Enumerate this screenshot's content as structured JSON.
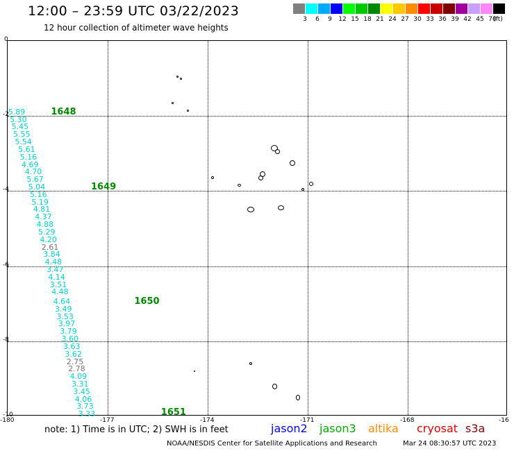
{
  "title": "12:00 – 23:59 UTC 03/22/2023",
  "subtitle": "12 hour collection of altimeter wave heights",
  "legend": {
    "colors": [
      "#808080",
      "#00ffff",
      "#00aaff",
      "#0000ff",
      "#00ff00",
      "#00c800",
      "#008800",
      "#ffff00",
      "#ffc800",
      "#ff8c00",
      "#ff0000",
      "#c80000",
      "#800000",
      "#a000a0",
      "#c8a0ff",
      "#ff88ff",
      "#000000"
    ],
    "labels": [
      "3",
      "6",
      "9",
      "12",
      "15",
      "18",
      "21",
      "24",
      "27",
      "30",
      "33",
      "36",
      "39",
      "42",
      "45",
      "70"
    ],
    "unit": "(ft)"
  },
  "axes": {
    "x_ticks": [
      "-180",
      "-177",
      "-174",
      "-171",
      "-168",
      "-16"
    ],
    "y_ticks": [
      "0",
      "-2",
      "-4",
      "-6",
      "-8",
      "-10"
    ],
    "x_range": [
      -180,
      -165
    ],
    "y_range": [
      -10,
      0
    ]
  },
  "passes": [
    {
      "label": "1648",
      "lon": -178.7,
      "lat": -1.9
    },
    {
      "label": "1649",
      "lon": -177.5,
      "lat": -3.9
    },
    {
      "label": "1650",
      "lon": -176.2,
      "lat": -6.95
    },
    {
      "label": "1651",
      "lon": -175.4,
      "lat": -9.9
    }
  ],
  "wave_heights": [
    {
      "v": "5.89",
      "lon": -179.9,
      "lat": -1.9
    },
    {
      "v": "5.30",
      "lon": -179.85,
      "lat": -2.1
    },
    {
      "v": "5.45",
      "lon": -179.8,
      "lat": -2.3
    },
    {
      "v": "5.55",
      "lon": -179.75,
      "lat": -2.5
    },
    {
      "v": "5.54",
      "lon": -179.7,
      "lat": -2.7
    },
    {
      "v": "5.61",
      "lon": -179.6,
      "lat": -2.9
    },
    {
      "v": "5.16",
      "lon": -179.55,
      "lat": -3.1
    },
    {
      "v": "4.69",
      "lon": -179.5,
      "lat": -3.3
    },
    {
      "v": "4.70",
      "lon": -179.4,
      "lat": -3.5
    },
    {
      "v": "5.67",
      "lon": -179.35,
      "lat": -3.7
    },
    {
      "v": "5.04",
      "lon": -179.3,
      "lat": -3.9
    },
    {
      "v": "5.16",
      "lon": -179.25,
      "lat": -4.1
    },
    {
      "v": "5.19",
      "lon": -179.2,
      "lat": -4.3
    },
    {
      "v": "4.81",
      "lon": -179.15,
      "lat": -4.5
    },
    {
      "v": "4.37",
      "lon": -179.1,
      "lat": -4.7
    },
    {
      "v": "4.88",
      "lon": -179.05,
      "lat": -4.9
    },
    {
      "v": "5.29",
      "lon": -179.0,
      "lat": -5.1
    },
    {
      "v": "4.20",
      "lon": -178.95,
      "lat": -5.3
    },
    {
      "v": "2.61",
      "lon": -178.9,
      "lat": -5.5,
      "gray": true
    },
    {
      "v": "3.84",
      "lon": -178.85,
      "lat": -5.7
    },
    {
      "v": "4.48",
      "lon": -178.8,
      "lat": -5.9
    },
    {
      "v": "3.47",
      "lon": -178.75,
      "lat": -6.1
    },
    {
      "v": "4.14",
      "lon": -178.7,
      "lat": -6.3
    },
    {
      "v": "3.51",
      "lon": -178.65,
      "lat": -6.5
    },
    {
      "v": "4.48",
      "lon": -178.6,
      "lat": -6.7
    },
    {
      "v": "4.64",
      "lon": -178.55,
      "lat": -6.95
    },
    {
      "v": "3.49",
      "lon": -178.5,
      "lat": -7.15
    },
    {
      "v": "3.53",
      "lon": -178.45,
      "lat": -7.35
    },
    {
      "v": "3.97",
      "lon": -178.4,
      "lat": -7.55
    },
    {
      "v": "3.79",
      "lon": -178.35,
      "lat": -7.75
    },
    {
      "v": "3.60",
      "lon": -178.3,
      "lat": -7.95
    },
    {
      "v": "3.63",
      "lon": -178.25,
      "lat": -8.15
    },
    {
      "v": "3.62",
      "lon": -178.2,
      "lat": -8.35
    },
    {
      "v": "2.75",
      "lon": -178.15,
      "lat": -8.55,
      "gray": true
    },
    {
      "v": "2.78",
      "lon": -178.1,
      "lat": -8.75,
      "gray": true
    },
    {
      "v": "4.09",
      "lon": -178.05,
      "lat": -8.95
    },
    {
      "v": "3.31",
      "lon": -178.0,
      "lat": -9.15
    },
    {
      "v": "3.45",
      "lon": -177.95,
      "lat": -9.35
    },
    {
      "v": "4.06",
      "lon": -177.9,
      "lat": -9.55
    },
    {
      "v": "3.73",
      "lon": -177.85,
      "lat": -9.75
    },
    {
      "v": "3.33",
      "lon": -177.8,
      "lat": -9.95
    }
  ],
  "islands": [
    {
      "lon": -174.9,
      "lat": -0.95,
      "w": 3,
      "h": 3
    },
    {
      "lon": -174.8,
      "lat": -1.0,
      "w": 3,
      "h": 3
    },
    {
      "lon": -175.05,
      "lat": -1.65,
      "w": 3,
      "h": 3
    },
    {
      "lon": -174.6,
      "lat": -1.85,
      "w": 3,
      "h": 3
    },
    {
      "lon": -172.0,
      "lat": -2.85,
      "w": 10,
      "h": 9
    },
    {
      "lon": -171.9,
      "lat": -2.95,
      "w": 7,
      "h": 7
    },
    {
      "lon": -171.45,
      "lat": -3.25,
      "w": 8,
      "h": 8
    },
    {
      "lon": -172.4,
      "lat": -3.65,
      "w": 7,
      "h": 7
    },
    {
      "lon": -172.35,
      "lat": -3.55,
      "w": 8,
      "h": 8
    },
    {
      "lon": -170.9,
      "lat": -3.8,
      "w": 6,
      "h": 6
    },
    {
      "lon": -171.15,
      "lat": -3.95,
      "w": 4,
      "h": 4
    },
    {
      "lon": -173.85,
      "lat": -3.65,
      "w": 4,
      "h": 4
    },
    {
      "lon": -173.05,
      "lat": -3.85,
      "w": 5,
      "h": 4
    },
    {
      "lon": -172.7,
      "lat": -4.5,
      "w": 10,
      "h": 8
    },
    {
      "lon": -171.8,
      "lat": -4.45,
      "w": 9,
      "h": 7
    },
    {
      "lon": -172.7,
      "lat": -8.6,
      "w": 4,
      "h": 4
    },
    {
      "lon": -174.4,
      "lat": -8.8,
      "w": 2,
      "h": 2
    },
    {
      "lon": -172.0,
      "lat": -9.2,
      "w": 7,
      "h": 8
    },
    {
      "lon": -171.3,
      "lat": -9.5,
      "w": 6,
      "h": 8
    }
  ],
  "note": "note:  1) Time is in UTC; 2) SWH is in feet",
  "satellites": [
    {
      "name": "jason2",
      "color": "#0000ff"
    },
    {
      "name": "jason3",
      "color": "#00aa00"
    },
    {
      "name": "altika",
      "color": "#ff8c00"
    },
    {
      "name": "cryosat",
      "color": "#e00000"
    },
    {
      "name": "s3a",
      "color": "#800000"
    }
  ],
  "credit": "NOAA/NESDIS Center for Satellite Applications and Research",
  "generated": "Mar 24 08:30:57 UTC 2023"
}
